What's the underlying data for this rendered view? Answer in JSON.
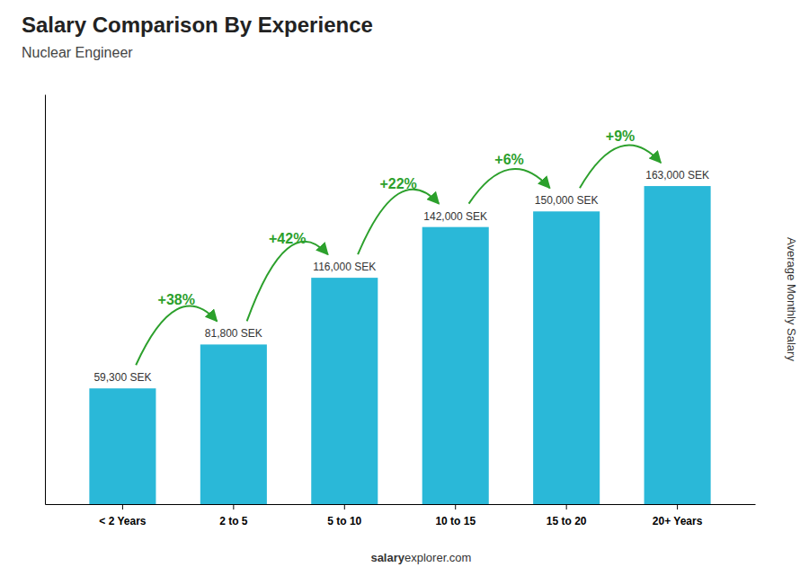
{
  "chart_data": {
    "type": "bar",
    "title": "Salary Comparison By Experience",
    "subtitle": "Nuclear Engineer",
    "y_label": "Average Monthly Salary",
    "categories": [
      "< 2 Years",
      "2 to 5",
      "5 to 10",
      "10 to 15",
      "15 to 20",
      "20+ Years"
    ],
    "values": [
      59300,
      81800,
      116000,
      142000,
      150000,
      163000
    ],
    "value_labels": [
      "59,300 SEK",
      "81,800 SEK",
      "116,000 SEK",
      "142,000 SEK",
      "150,000 SEK",
      "163,000 SEK"
    ],
    "data_labels": true,
    "annotations": [
      "+38%",
      "+42%",
      "+22%",
      "+6%",
      "+9%"
    ],
    "footer": [
      "salary",
      "explorer.com"
    ],
    "color": "#2ab8d8",
    "ylim": [
      0,
      210000
    ],
    "tick_labels": "x",
    "grid": false
  }
}
